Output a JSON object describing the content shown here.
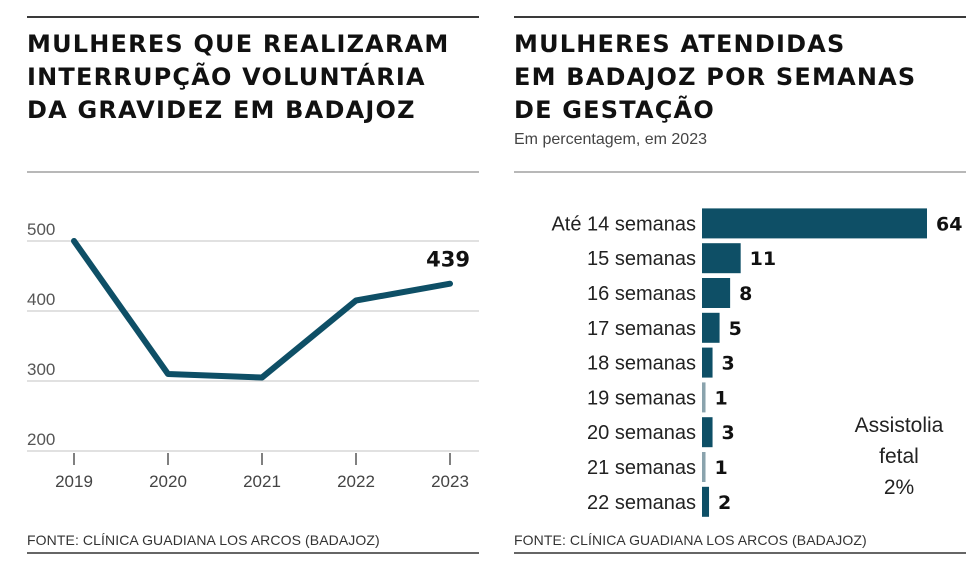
{
  "colors": {
    "series": "#0e4f66",
    "grid": "#cfcfcf",
    "text": "#1a1a1a"
  },
  "left": {
    "title_lines": [
      "MULHERES QUE REALIZARAM",
      "INTERRUPÇÃO VOLUNTÁRIA",
      "DA GRAVIDEZ EM BADAJOZ"
    ],
    "source": "FONTE: CLÍNICA GUADIANA LOS ARCOS (BADAJOZ)"
  },
  "right": {
    "title_lines": [
      "MULHERES ATENDIDAS",
      "EM BADAJOZ POR SEMANAS",
      "DE GESTAÇÃO"
    ],
    "subtitle": "Em percentagem, em 2023",
    "note_lines": [
      "Assistolia",
      "fetal",
      "2%"
    ],
    "source": "FONTE: CLÍNICA GUADIANA LOS ARCOS (BADAJOZ)"
  },
  "chart_data": [
    {
      "type": "line",
      "title": "MULHERES QUE REALIZARAM INTERRUPÇÃO VOLUNTÁRIA DA GRAVIDEZ EM BADAJOZ",
      "xlabel": "",
      "ylabel": "",
      "x": [
        "2019",
        "2020",
        "2021",
        "2022",
        "2023"
      ],
      "series": [
        {
          "name": "Mulheres",
          "values": [
            500,
            310,
            305,
            415,
            439
          ]
        }
      ],
      "ylim": [
        200,
        500
      ],
      "yticks": [
        "200",
        "300",
        "400",
        "500"
      ],
      "grid": true,
      "annotations": [
        {
          "x": "2023",
          "label": "439"
        }
      ]
    },
    {
      "type": "bar",
      "orientation": "horizontal",
      "title": "MULHERES ATENDIDAS EM BADAJOZ POR SEMANAS DE GESTAÇÃO",
      "subtitle": "Em percentagem, em 2023",
      "categories": [
        "Até 14 semanas",
        "15 semanas",
        "16 semanas",
        "17 semanas",
        "18 semanas",
        "19 semanas",
        "20 semanas",
        "21 semanas",
        "22 semanas"
      ],
      "values": [
        64,
        11,
        8,
        5,
        3,
        1,
        3,
        1,
        2
      ],
      "value_labels": [
        "64",
        "11",
        "8",
        "5",
        "3",
        "1",
        "3",
        "1",
        "2"
      ],
      "xlim": [
        0,
        64
      ],
      "annotations": [
        {
          "label": "Assistolia fetal 2%"
        }
      ]
    }
  ]
}
